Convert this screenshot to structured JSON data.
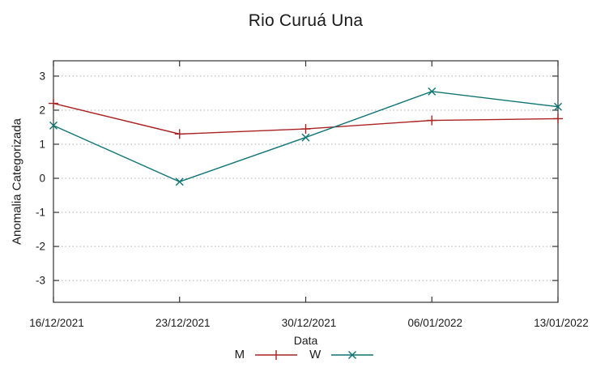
{
  "chart_data": {
    "type": "line",
    "title": "Rio Curuá Una",
    "xlabel": "Data",
    "ylabel": "Anomalia Categorizada",
    "categories": [
      "16/12/2021",
      "23/12/2021",
      "30/12/2021",
      "06/01/2022",
      "13/01/2022"
    ],
    "series": [
      {
        "name": "M",
        "color": "#aa2222",
        "marker": "plus",
        "values": [
          2.2,
          1.3,
          1.45,
          1.7,
          1.75
        ]
      },
      {
        "name": "W",
        "color": "#0f7474",
        "marker": "cross",
        "values": [
          1.55,
          -0.1,
          1.2,
          2.55,
          2.1
        ]
      }
    ],
    "yticks": [
      3,
      2,
      1,
      0,
      -1,
      -2,
      -3
    ],
    "ylim": [
      -3.64,
      3.45
    ],
    "grid": "horizontal-dotted",
    "legend_position": "bottom-center"
  },
  "colors": {
    "background": "#ffffff",
    "grid": "#b0b0b0",
    "axis": "#333333",
    "text": "#1c1c1c"
  }
}
